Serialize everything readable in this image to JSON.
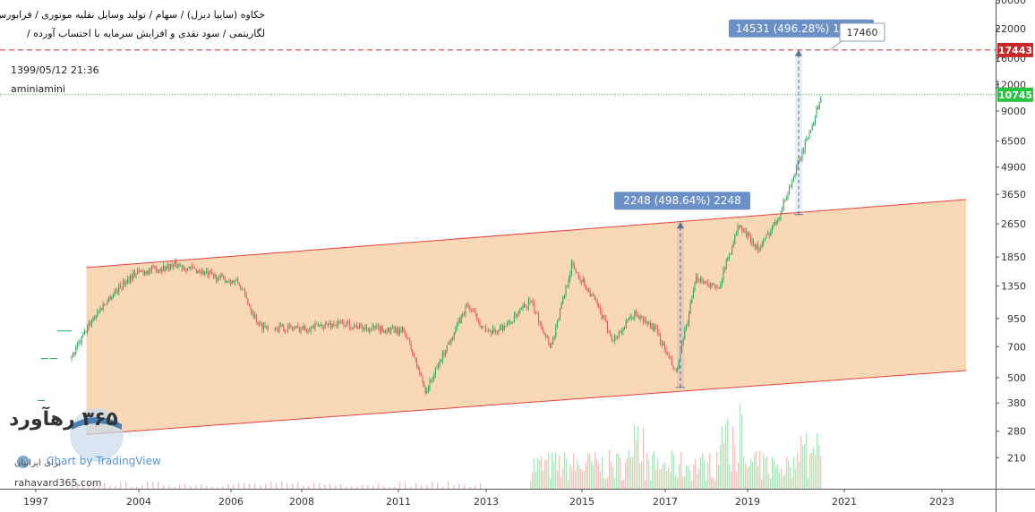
{
  "header": {
    "line1": "خکاوه (سایپا دیزل) / سهام / تولید وسایل نقلیه موتوری / فرابورس",
    "line2": "لگاریتمی / سود نقدی و افزایش سرمایه با احتساب آورده /",
    "datetime": "1399/05/12 21:36",
    "author": "aminiamini"
  },
  "branding": {
    "logo_text": "۳۶۵ رهآورد",
    "logo_sub": "برای ایرانیان",
    "url": "rahavard365.com",
    "tv_label": "Chart by TradingView"
  },
  "colors": {
    "up": "#26a65b",
    "down": "#e35a5a",
    "channel_fill": "#f8d1a8",
    "channel_line": "#e8413f",
    "resistance": "#c62828",
    "last_price": "#26c33e",
    "annotation": "#6b8fc7"
  },
  "chart_data": {
    "type": "candlestick",
    "scale": "log",
    "x_axis": {
      "ticks": [
        "1997",
        "2004",
        "2006",
        "2008",
        "2011",
        "2013",
        "2015",
        "2017",
        "2019",
        "2021",
        "2023"
      ]
    },
    "y_axis": {
      "ticks": [
        "30000",
        "22000",
        "16000",
        "12000",
        "9000",
        "6500",
        "4900",
        "3650",
        "2650",
        "1850",
        "1350",
        "950",
        "700",
        "500",
        "380",
        "280",
        "210"
      ],
      "ylim": [
        150,
        30000
      ]
    },
    "price_path": [
      [
        0,
        620
      ],
      [
        1,
        950
      ],
      [
        2,
        1250
      ],
      [
        3,
        1550
      ],
      [
        4,
        1620
      ],
      [
        5,
        1700
      ],
      [
        6,
        1600
      ],
      [
        7,
        1480
      ],
      [
        8,
        1400
      ],
      [
        9,
        880
      ],
      [
        10,
        860
      ],
      [
        11,
        850
      ],
      [
        12,
        880
      ],
      [
        13,
        900
      ],
      [
        14,
        860
      ],
      [
        15,
        840
      ],
      [
        16,
        820
      ],
      [
        17,
        430
      ],
      [
        18,
        700
      ],
      [
        19,
        1100
      ],
      [
        20,
        800
      ],
      [
        21,
        900
      ],
      [
        22,
        1150
      ],
      [
        23,
        700
      ],
      [
        24,
        1700
      ],
      [
        25,
        1200
      ],
      [
        26,
        750
      ],
      [
        27,
        1000
      ],
      [
        28,
        850
      ],
      [
        29,
        520
      ],
      [
        30,
        1500
      ],
      [
        31,
        1300
      ],
      [
        32,
        2600
      ],
      [
        33,
        2000
      ],
      [
        34,
        3000
      ],
      [
        35,
        5500
      ],
      [
        36,
        10745
      ]
    ],
    "channel": {
      "upper": [
        [
          1998.0,
          1650
        ],
        [
          2023.5,
          3450
        ]
      ],
      "lower": [
        [
          1998.0,
          270
        ],
        [
          2023.5,
          540
        ]
      ]
    },
    "lines": {
      "resistance": 17443,
      "last_price": 10745
    },
    "labels": {
      "resistance": "17443",
      "last_price": "10745",
      "target": "17460"
    },
    "annotations": [
      {
        "text": "2248 (498.64%) 2248",
        "from": 450,
        "to": 2698
      },
      {
        "text": "14531 (496.28%) 14531",
        "from": 2930,
        "to": 17460
      }
    ]
  }
}
